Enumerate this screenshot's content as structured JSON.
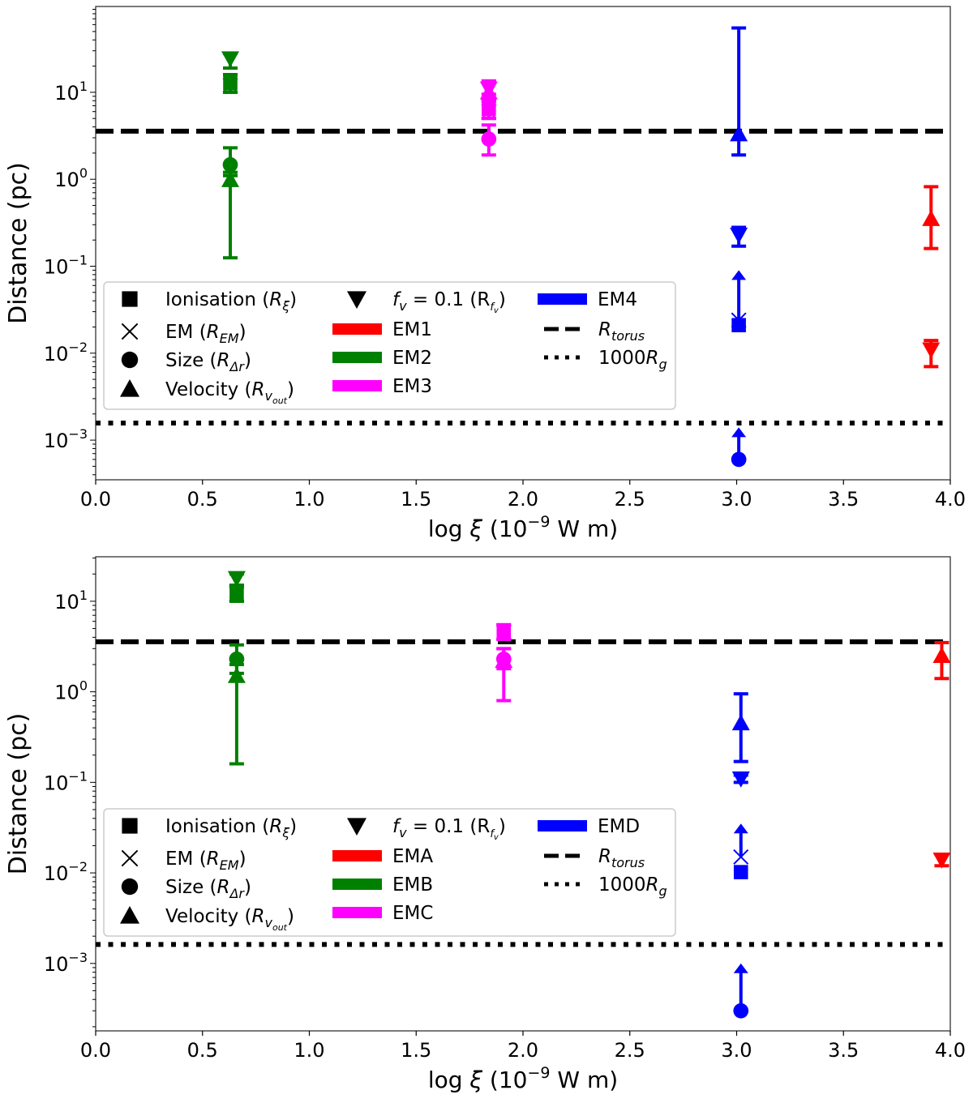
{
  "chart_data": [
    {
      "type": "scatter",
      "panel": "top",
      "xlabel": {
        "pre": "log ",
        "sym": "ξ",
        "mid": " (10",
        "sup": "−9",
        "post": " W m)"
      },
      "ylabel": "Distance (pc)",
      "xlim": [
        0,
        4
      ],
      "ylim": [
        0.00035,
        97
      ],
      "yscale": "log",
      "xticks": [
        "0.0",
        "0.5",
        "1.0",
        "1.5",
        "2.0",
        "2.5",
        "3.0",
        "3.5",
        "4.0"
      ],
      "yticks": [
        {
          "value": 10,
          "exp": "1"
        },
        {
          "value": 1,
          "exp": "0"
        },
        {
          "value": 0.1,
          "exp": "−1"
        },
        {
          "value": 0.01,
          "exp": "−2"
        },
        {
          "value": 0.001,
          "exp": "−3"
        }
      ],
      "reference_lines": {
        "R_torus": 3.57,
        "1000R_g": 0.00157
      },
      "legend_position": "center-left",
      "series": [
        {
          "name": "EM1",
          "color": "#ff0000",
          "x": 3.91,
          "points": [
            {
              "kind": "velocity",
              "y": 0.35,
              "lo": 0.16,
              "hi": 0.82
            },
            {
              "kind": "fv",
              "y": 0.011,
              "lo": 0.007,
              "hi": 0.014
            }
          ]
        },
        {
          "name": "EM2",
          "color": "#008000",
          "x": 0.63,
          "points": [
            {
              "kind": "fv",
              "y": 24.5,
              "lo": 19,
              "hi": 28
            },
            {
              "kind": "ionisation",
              "y": 12.7,
              "lo": 10,
              "hi": 16
            },
            {
              "kind": "em",
              "y": 12,
              "lo": 10,
              "hi": 16
            },
            {
              "kind": "size",
              "y": 1.47,
              "lo": 1.1,
              "hi": 2.3
            },
            {
              "kind": "velocity",
              "y": 0.98,
              "lo": 0.125,
              "hi": 1.2
            }
          ]
        },
        {
          "name": "EM3",
          "color": "#ff00ff",
          "x": 1.84,
          "points": [
            {
              "kind": "velocity",
              "y": 10,
              "lo": 8,
              "hi": 13.5
            },
            {
              "kind": "fv",
              "y": 11,
              "lo": 9.5,
              "hi": 13.5
            },
            {
              "kind": "ionisation",
              "y": 6.4,
              "lo": 5,
              "hi": 8
            },
            {
              "kind": "em",
              "y": 6,
              "lo": 5,
              "hi": 8
            },
            {
              "kind": "size",
              "y": 2.9,
              "lo": 1.9,
              "hi": 4.2
            }
          ]
        },
        {
          "name": "EM4",
          "color": "#0000ff",
          "x": 3.01,
          "points": [
            {
              "kind": "velocity",
              "y": 3.3,
              "lo": 1.9,
              "hi": 55
            },
            {
              "kind": "fv",
              "y": 0.23,
              "lo": 0.17,
              "hi": 0.28
            },
            {
              "kind": "em",
              "y": 0.024,
              "lower_limit_to": 0.09
            },
            {
              "kind": "ionisation",
              "y": 0.021
            },
            {
              "kind": "size",
              "y": 0.0006,
              "lower_limit_to": 0.0014
            }
          ]
        }
      ]
    },
    {
      "type": "scatter",
      "panel": "bottom",
      "xlabel": {
        "pre": "log ",
        "sym": "ξ",
        "mid": " (10",
        "sup": "−9",
        "post": " W m)"
      },
      "ylabel": "Distance (pc)",
      "xlim": [
        0,
        4
      ],
      "ylim": [
        0.00018,
        31
      ],
      "yscale": "log",
      "xticks": [
        "0.0",
        "0.5",
        "1.0",
        "1.5",
        "2.0",
        "2.5",
        "3.0",
        "3.5",
        "4.0"
      ],
      "yticks": [
        {
          "value": 10,
          "exp": "1"
        },
        {
          "value": 1,
          "exp": "0"
        },
        {
          "value": 0.1,
          "exp": "−1"
        },
        {
          "value": 0.01,
          "exp": "−2"
        },
        {
          "value": 0.001,
          "exp": "−3"
        }
      ],
      "reference_lines": {
        "R_torus": 3.57,
        "1000R_g": 0.00162
      },
      "legend_position": "center-left",
      "series": [
        {
          "name": "EMA",
          "color": "#ff0000",
          "x": 3.96,
          "points": [
            {
              "kind": "velocity",
              "y": 2.5,
              "lo": 1.4,
              "hi": 3.5
            },
            {
              "kind": "fv",
              "y": 0.014,
              "lo": 0.012,
              "hi": 0.016
            }
          ]
        },
        {
          "name": "EMB",
          "color": "#008000",
          "x": 0.66,
          "points": [
            {
              "kind": "fv",
              "y": 18,
              "lo": 15,
              "hi": 20
            },
            {
              "kind": "ionisation",
              "y": 12,
              "lo": 10,
              "hi": 15
            },
            {
              "kind": "em",
              "y": 12,
              "lo": 10,
              "hi": 15
            },
            {
              "kind": "size",
              "y": 2.3,
              "lo": 1.6,
              "hi": 3.3
            },
            {
              "kind": "velocity",
              "y": 1.5,
              "lo": 0.16,
              "hi": 2.0
            }
          ]
        },
        {
          "name": "EMC",
          "color": "#ff00ff",
          "x": 1.91,
          "points": [
            {
              "kind": "ionisation",
              "y": 4.5,
              "lo": 3.8,
              "hi": 5.5
            },
            {
              "kind": "em",
              "y": 4.5,
              "lo": 3.8,
              "hi": 5.5
            },
            {
              "kind": "velocity",
              "y": 2.2,
              "lo": 0.8,
              "hi": 3.0
            },
            {
              "kind": "size",
              "y": 2.3,
              "lo": 1.8,
              "hi": 3.0
            }
          ]
        },
        {
          "name": "EMD",
          "color": "#0000ff",
          "x": 3.02,
          "points": [
            {
              "kind": "velocity",
              "y": 0.45,
              "lo": 0.17,
              "hi": 0.95
            },
            {
              "kind": "fv",
              "y": 0.11,
              "lo": 0.1,
              "hi": 0.12
            },
            {
              "kind": "em",
              "y": 0.015,
              "lower_limit_to": 0.035
            },
            {
              "kind": "ionisation",
              "y": 0.0102
            },
            {
              "kind": "size",
              "y": 0.0003,
              "lower_limit_to": 0.001
            }
          ]
        }
      ]
    }
  ],
  "legend": {
    "markers": [
      {
        "kind": "ionisation",
        "pre": "Ionisation (",
        "sym": "R",
        "sub": "ξ",
        "post": ")"
      },
      {
        "kind": "em",
        "pre": "EM (",
        "sym": "R",
        "sub": "EM",
        "post": ")"
      },
      {
        "kind": "size",
        "pre": "Size (",
        "sym": "R",
        "sub": "Δr",
        "post": ")"
      },
      {
        "kind": "velocity",
        "pre": "Velocity (",
        "sym": "R",
        "sub": "v_out",
        "post": ")"
      },
      {
        "kind": "fv",
        "pre": "f",
        "sym": "",
        "sub": "v",
        "post": " = 0.1 (R",
        "sub2": "fv",
        "end": ")"
      }
    ],
    "lines": [
      {
        "style": "dashed",
        "sym": "R",
        "sub": "torus"
      },
      {
        "style": "dotted",
        "pre": "1000",
        "sym": "R",
        "sub": "g"
      }
    ]
  }
}
